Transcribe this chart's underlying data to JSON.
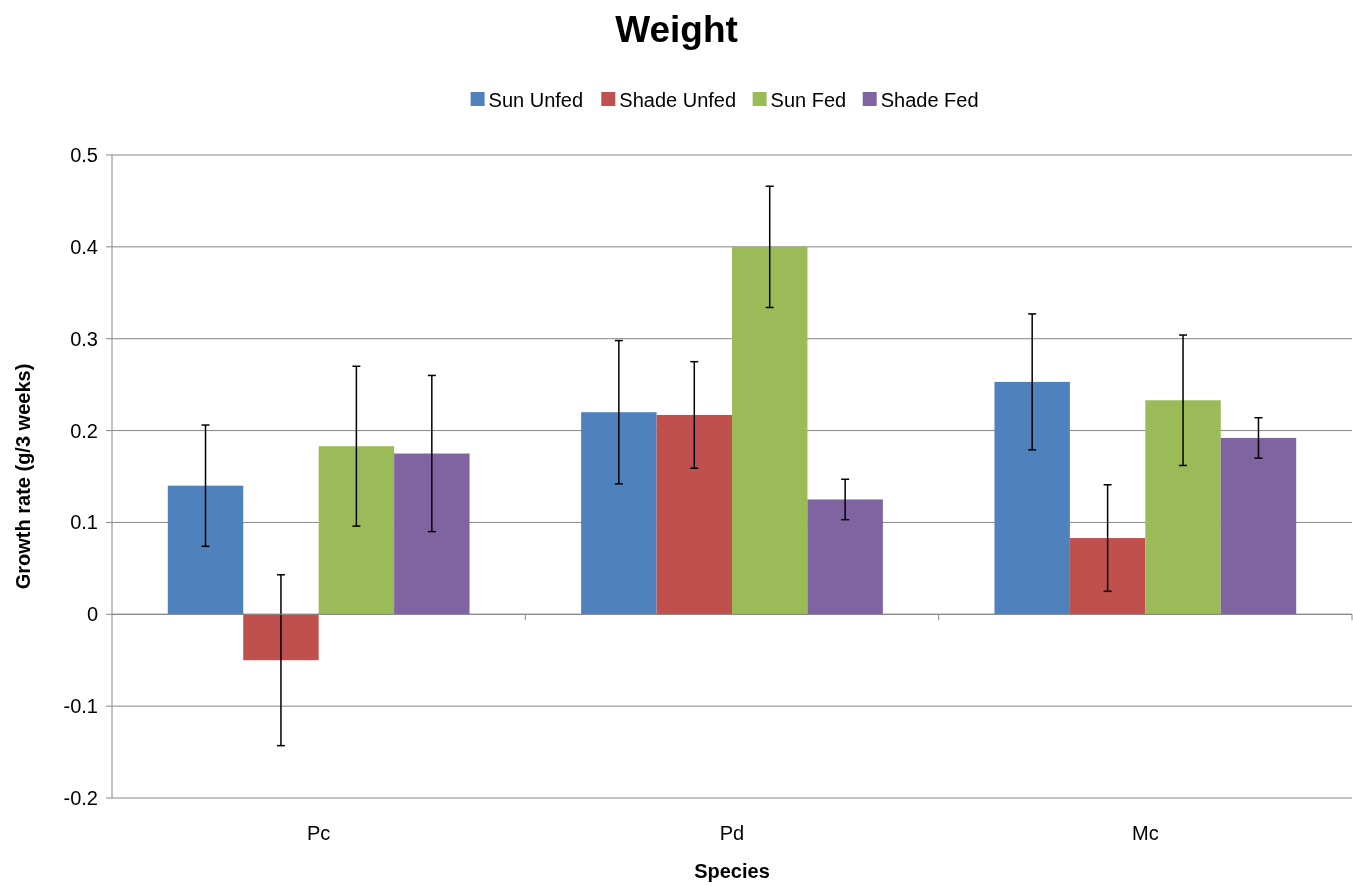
{
  "chart_data": {
    "type": "bar",
    "title": "Weight",
    "xlabel": "Species",
    "ylabel": "Growth rate (g/3 weeks)",
    "categories": [
      "Pc",
      "Pd",
      "Mc"
    ],
    "series": [
      {
        "name": "Sun Unfed",
        "color": "#4f81bd",
        "values": [
          0.14,
          0.22,
          0.253
        ],
        "errors": [
          0.066,
          0.078,
          0.074
        ]
      },
      {
        "name": "Shade Unfed",
        "color": "#c0504d",
        "values": [
          -0.05,
          0.217,
          0.083
        ],
        "errors": [
          0.093,
          0.058,
          0.058
        ]
      },
      {
        "name": "Sun Fed",
        "color": "#9bbb59",
        "values": [
          0.183,
          0.4,
          0.233
        ],
        "errors": [
          0.087,
          0.066,
          0.071
        ]
      },
      {
        "name": "Shade Fed",
        "color": "#8064a2",
        "values": [
          0.175,
          0.125,
          0.192
        ],
        "errors": [
          0.085,
          0.022,
          0.022
        ]
      }
    ],
    "ylim": [
      -0.2,
      0.5
    ],
    "yticks": [
      -0.2,
      -0.1,
      0,
      0.1,
      0.2,
      0.3,
      0.4,
      0.5
    ],
    "grid": "y",
    "legend": "top"
  }
}
